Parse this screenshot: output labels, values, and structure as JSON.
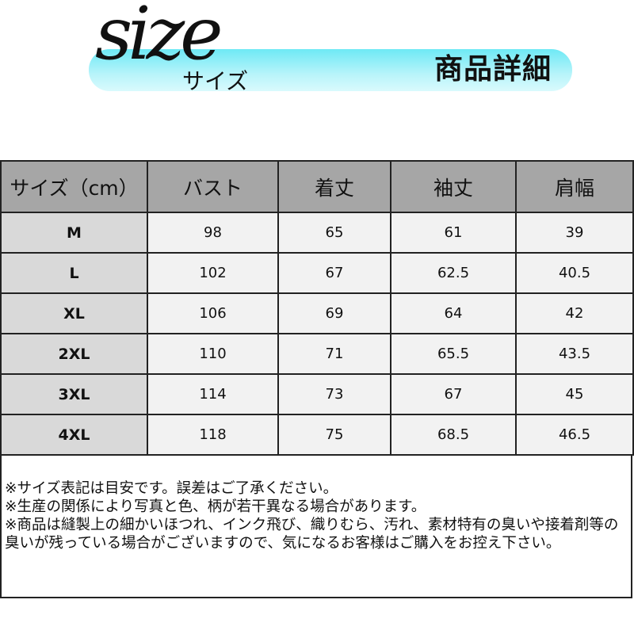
{
  "header": {
    "logo_text": "size",
    "logo_kana": "サイズ",
    "title": "商品詳細",
    "banner_color": "#6ee9f5"
  },
  "table": {
    "columns": [
      "サイズ（cm）",
      "バスト",
      "着丈",
      "袖丈",
      "肩幅"
    ],
    "rows": [
      [
        "M",
        "98",
        "65",
        "61",
        "39"
      ],
      [
        "L",
        "102",
        "67",
        "62.5",
        "40.5"
      ],
      [
        "XL",
        "106",
        "69",
        "64",
        "42"
      ],
      [
        "2XL",
        "110",
        "71",
        "65.5",
        "43.5"
      ],
      [
        "3XL",
        "114",
        "73",
        "67",
        "45"
      ],
      [
        "4XL",
        "118",
        "75",
        "68.5",
        "46.5"
      ]
    ]
  },
  "notes": [
    "※サイズ表記は目安です。誤差はご了承ください。",
    "※生産の関係により写真と色、柄が若干異なる場合があります。",
    "※商品は縫製上の細かいほつれ、インク飛び、織りむら、汚れ、素材特有の臭いや接着剤等の臭いが残っている場合がございますので、気になるお客様はご購入をお控え下さい。"
  ]
}
